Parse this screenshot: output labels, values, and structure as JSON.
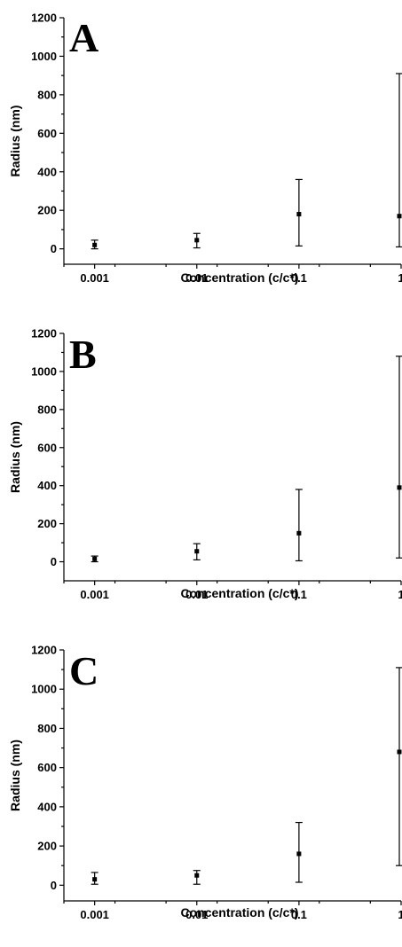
{
  "chart_data": [
    {
      "type": "scatter",
      "panel_label": "A",
      "xscale": "log",
      "xlabel": "Concentration (c/c*)",
      "ylabel": "Radius (nm)",
      "xlim": [
        0.0005,
        1
      ],
      "ylim": [
        -80,
        1200
      ],
      "x_ticks": [
        "0.001",
        "0.01",
        "0.1",
        "1"
      ],
      "y_ticks": [
        "0",
        "200",
        "400",
        "600",
        "800",
        "1000",
        "1200"
      ],
      "grid": false,
      "series": [
        {
          "x": [
            0.001,
            0.01,
            0.1,
            1
          ],
          "y": [
            20,
            45,
            180,
            170
          ],
          "err_low": [
            0,
            5,
            15,
            10
          ],
          "err_high": [
            45,
            80,
            360,
            910
          ]
        }
      ]
    },
    {
      "type": "scatter",
      "panel_label": "B",
      "xscale": "log",
      "xlabel": "Concentration (c/c*)",
      "ylabel": "Radius (nm)",
      "xlim": [
        0.0005,
        1
      ],
      "ylim": [
        -100,
        1200
      ],
      "x_ticks": [
        "0.001",
        "0.01",
        "0.1",
        "1"
      ],
      "y_ticks": [
        "0",
        "200",
        "400",
        "600",
        "800",
        "1000",
        "1200"
      ],
      "grid": false,
      "series": [
        {
          "x": [
            0.001,
            0.01,
            0.1,
            1
          ],
          "y": [
            15,
            55,
            150,
            390
          ],
          "err_low": [
            0,
            10,
            5,
            20
          ],
          "err_high": [
            30,
            95,
            380,
            1080
          ]
        }
      ]
    },
    {
      "type": "scatter",
      "panel_label": "C",
      "xscale": "log",
      "xlabel": "Concentration (c/c*)",
      "ylabel": "Radius (nm)",
      "xlim": [
        0.0005,
        1
      ],
      "ylim": [
        -80,
        1200
      ],
      "x_ticks": [
        "0.001",
        "0.01",
        "0.1",
        "1"
      ],
      "y_ticks": [
        "0",
        "200",
        "400",
        "600",
        "800",
        "1000",
        "1200"
      ],
      "grid": false,
      "series": [
        {
          "x": [
            0.001,
            0.01,
            0.1,
            1
          ],
          "y": [
            30,
            50,
            160,
            680
          ],
          "err_low": [
            5,
            5,
            15,
            100
          ],
          "err_high": [
            65,
            75,
            320,
            1110
          ]
        }
      ]
    }
  ]
}
